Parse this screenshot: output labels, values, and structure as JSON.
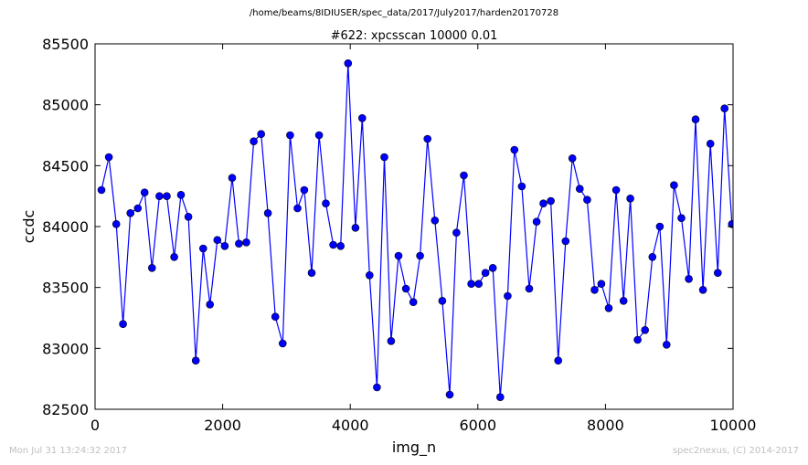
{
  "supertitle": "/home/beams/8IDIUSER/spec_data/2017/July2017/harden20170728",
  "footer": {
    "timestamp": "Mon Jul 31 13:24:32 2017",
    "credit": "spec2nexus, (C) 2014-2017"
  },
  "colors": {
    "series": "#0000ff",
    "axes": "#000000",
    "footer": "#bfbfbf"
  },
  "chart_data": {
    "type": "line",
    "title": "#622: xpcsscan 10000 0.01",
    "xlabel": "img_n",
    "ylabel": "ccdc",
    "xlim": [
      0,
      10000
    ],
    "ylim": [
      82500,
      85500
    ],
    "xticks": [
      0,
      2000,
      4000,
      6000,
      8000,
      10000
    ],
    "yticks": [
      82500,
      83000,
      83500,
      84000,
      84500,
      85000,
      85500
    ],
    "xtick_labels": [
      "0",
      "2000",
      "4000",
      "6000",
      "8000",
      "10000"
    ],
    "ytick_labels": [
      "82500",
      "83000",
      "83500",
      "84000",
      "84500",
      "85000",
      "85500"
    ],
    "grid": false,
    "marker": "circle",
    "series": [
      {
        "x": [
          101,
          217,
          333,
          439,
          555,
          671,
          777,
          893,
          1009,
          1125,
          1241,
          1347,
          1463,
          1579,
          1695,
          1801,
          1917,
          2033,
          2149,
          2255,
          2371,
          2487,
          2603,
          2709,
          2825,
          2941,
          3057,
          3173,
          3279,
          3395,
          3511,
          3617,
          3733,
          3849,
          3965,
          4081,
          4187,
          4303,
          4419,
          4535,
          4641,
          4757,
          4873,
          4989,
          5095,
          5211,
          5327,
          5443,
          5559,
          5665,
          5781,
          5897,
          6013,
          6119,
          6235,
          6351,
          6467,
          6573,
          6689,
          6805,
          6921,
          7027,
          7143,
          7259,
          7375,
          7481,
          7597,
          7713,
          7829,
          7935,
          8051,
          8167,
          8283,
          8389,
          8505,
          8621,
          8737,
          8853,
          8959,
          9075,
          9191,
          9307,
          9413,
          9529,
          9645,
          9761,
          9867,
          9983
        ],
        "y": [
          84300,
          84570,
          84020,
          83200,
          84110,
          84150,
          84280,
          83660,
          84250,
          84250,
          83750,
          84260,
          84080,
          82900,
          83820,
          83360,
          83890,
          83840,
          84400,
          83860,
          83870,
          84700,
          84760,
          84110,
          83260,
          83040,
          84750,
          84150,
          84300,
          83620,
          84750,
          84190,
          83850,
          83840,
          85340,
          83990,
          84890,
          83600,
          82680,
          84570,
          83060,
          83760,
          83490,
          83380,
          83760,
          84720,
          84050,
          83390,
          82620,
          83950,
          84420,
          83530,
          83530,
          83620,
          83660,
          82600,
          83430,
          84630,
          84330,
          83490,
          84040,
          84190,
          84210,
          82900,
          83880,
          84560,
          84310,
          84220,
          83480,
          83530,
          83330,
          84300,
          83390,
          84230,
          83070,
          83150,
          83750,
          84000,
          83030,
          84340,
          84070,
          83570,
          84880,
          83480,
          84680,
          83620,
          84970,
          84020
        ]
      }
    ]
  }
}
